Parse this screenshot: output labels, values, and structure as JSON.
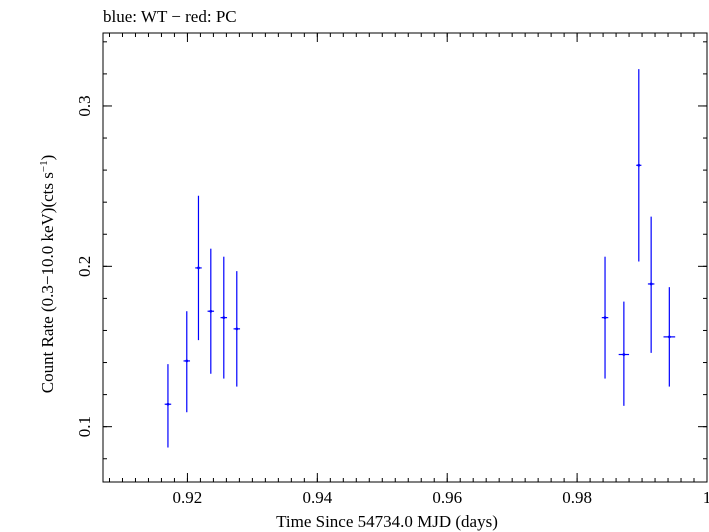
{
  "chart_data": {
    "type": "scatter",
    "title": "blue: WT − red: PC",
    "xlabel": "Time Since 54734.0 MJD (days)",
    "ylabel_main": "Count Rate (0.3−10.0 keV)(cts s",
    "ylabel_sup": "−1",
    "ylabel_close": ")",
    "xlim": [
      0.907,
      1.0
    ],
    "ylim": [
      0.0655,
      0.3455
    ],
    "x_ticks": [
      0.92,
      0.94,
      0.96,
      0.98,
      1.0
    ],
    "x_tick_labels": [
      "0.92",
      "0.94",
      "0.96",
      "0.98",
      "1"
    ],
    "x_minor_step": 0.002,
    "y_ticks": [
      0.1,
      0.2,
      0.3
    ],
    "y_tick_labels": [
      "0.1",
      "0.2",
      "0.3"
    ],
    "y_minor_step": 0.02,
    "grid": false,
    "series": [
      {
        "name": "WT",
        "color": "#0000ff",
        "points": [
          {
            "x": 0.917,
            "xerr": 0.0005,
            "y": 0.114,
            "ylo": 0.087,
            "yhi": 0.139
          },
          {
            "x": 0.9199,
            "xerr": 0.0005,
            "y": 0.141,
            "ylo": 0.109,
            "yhi": 0.172
          },
          {
            "x": 0.9217,
            "xerr": 0.0005,
            "y": 0.199,
            "ylo": 0.154,
            "yhi": 0.244
          },
          {
            "x": 0.9236,
            "xerr": 0.0005,
            "y": 0.172,
            "ylo": 0.133,
            "yhi": 0.211
          },
          {
            "x": 0.9256,
            "xerr": 0.0005,
            "y": 0.168,
            "ylo": 0.13,
            "yhi": 0.206
          },
          {
            "x": 0.9276,
            "xerr": 0.0005,
            "y": 0.161,
            "ylo": 0.125,
            "yhi": 0.197
          },
          {
            "x": 0.9843,
            "xerr": 0.0005,
            "y": 0.168,
            "ylo": 0.13,
            "yhi": 0.206
          },
          {
            "x": 0.9872,
            "xerr": 0.0008,
            "y": 0.145,
            "ylo": 0.113,
            "yhi": 0.178
          },
          {
            "x": 0.9895,
            "xerr": 0.0004,
            "y": 0.263,
            "ylo": 0.203,
            "yhi": 0.323
          },
          {
            "x": 0.9914,
            "xerr": 0.0005,
            "y": 0.189,
            "ylo": 0.146,
            "yhi": 0.231
          },
          {
            "x": 0.9942,
            "xerr": 0.0009,
            "y": 0.156,
            "ylo": 0.125,
            "yhi": 0.187
          }
        ]
      }
    ]
  }
}
